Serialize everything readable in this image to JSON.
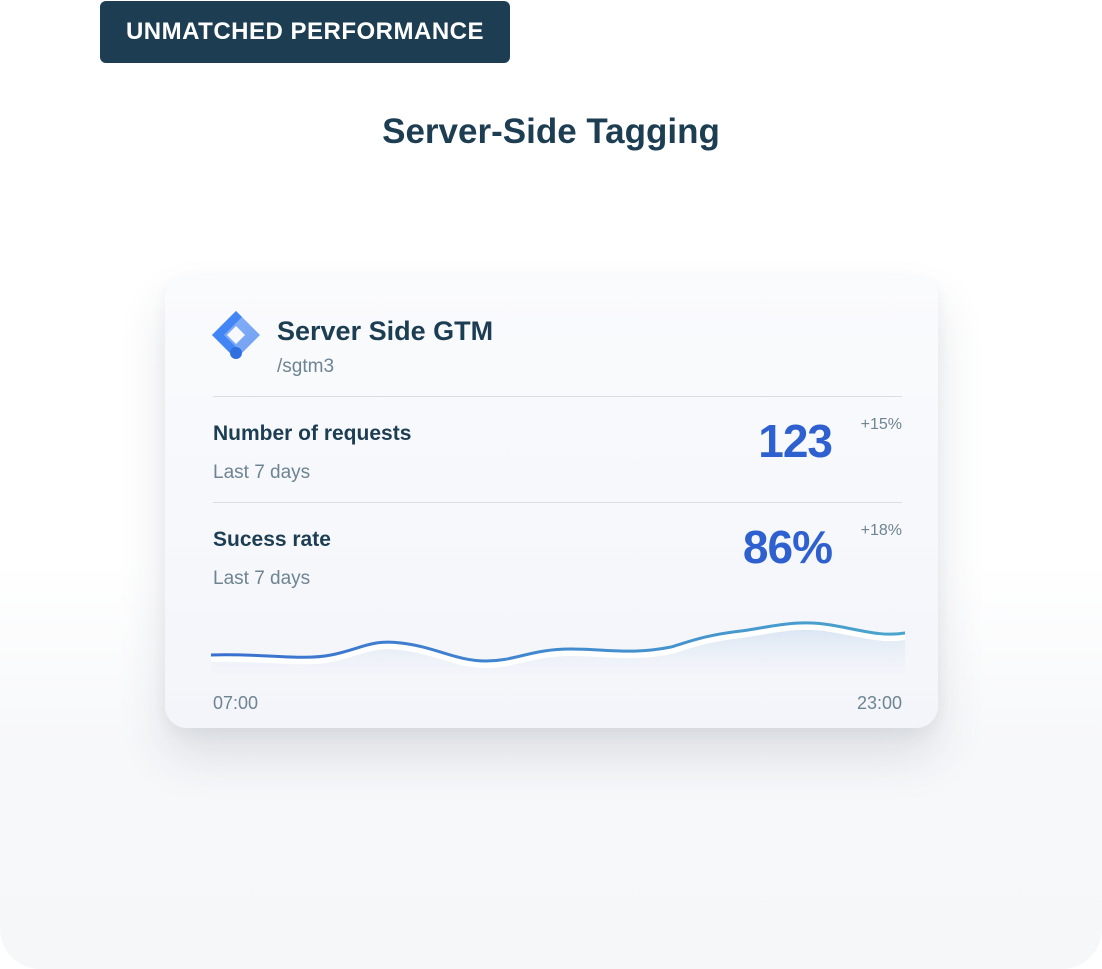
{
  "badge": {
    "label": "UNMATCHED PERFORMANCE"
  },
  "headline": "Server-Side Tagging",
  "card": {
    "logo_icon": "google-tag-manager-icon",
    "title": "Server Side GTM",
    "path": "/sgtm3",
    "metrics": [
      {
        "label": "Number of requests",
        "period": "Last 7 days",
        "value": "123",
        "delta": "+15%"
      },
      {
        "label": "Sucess rate",
        "period": "Last 7 days",
        "value": "86%",
        "delta": "+18%"
      }
    ],
    "chart": {
      "x_start": "07:00",
      "x_end": "23:00"
    }
  },
  "colors": {
    "navy": "#1d3e52",
    "accent_blue": "#2f60cf",
    "muted_text": "#6e8492",
    "line_start": "#3a6fd0",
    "line_end": "#4aa5cc"
  }
}
